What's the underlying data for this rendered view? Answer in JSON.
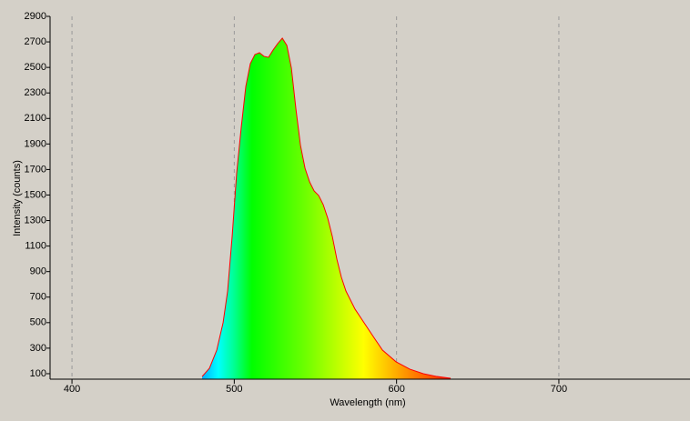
{
  "chart_data": {
    "type": "area",
    "xlabel": "Wavelength (nm)",
    "ylabel": "Intensity (counts)",
    "x": [
      480.2,
      484.7,
      489.2,
      493.1,
      495.9,
      498.7,
      501.5,
      504.3,
      507.1,
      509.9,
      512.7,
      515.5,
      518.3,
      521.1,
      523.9,
      526.7,
      529.6,
      532.4,
      535.2,
      538.0,
      540.8,
      543.6,
      546.4,
      549.2,
      552.0,
      554.8,
      557.6,
      560.4,
      563.2,
      566.0,
      568.8,
      574.4,
      580.0,
      585.6,
      591.3,
      599.7,
      608.1,
      616.5,
      624.9,
      633.3
    ],
    "series": [
      {
        "name": "Intensity",
        "color": "#ff0000",
        "values": [
          78,
          143,
          285,
          499,
          748,
          1176,
          1675,
          2031,
          2351,
          2530,
          2601,
          2615,
          2587,
          2579,
          2636,
          2686,
          2729,
          2672,
          2494,
          2173,
          1888,
          1710,
          1603,
          1532,
          1496,
          1425,
          1318,
          1176,
          998,
          855,
          748,
          606,
          499,
          392,
          285,
          193,
          136,
          100,
          78,
          64
        ]
      }
    ],
    "xlim": [
      386.5,
      780.8
    ],
    "xticks": [
      400,
      500,
      600,
      700
    ],
    "ylim": [
      57,
      2900
    ],
    "yticks": [
      100,
      300,
      500,
      700,
      900,
      1100,
      1300,
      1500,
      1700,
      1900,
      2100,
      2300,
      2500,
      2700,
      2900
    ],
    "grid": true
  }
}
